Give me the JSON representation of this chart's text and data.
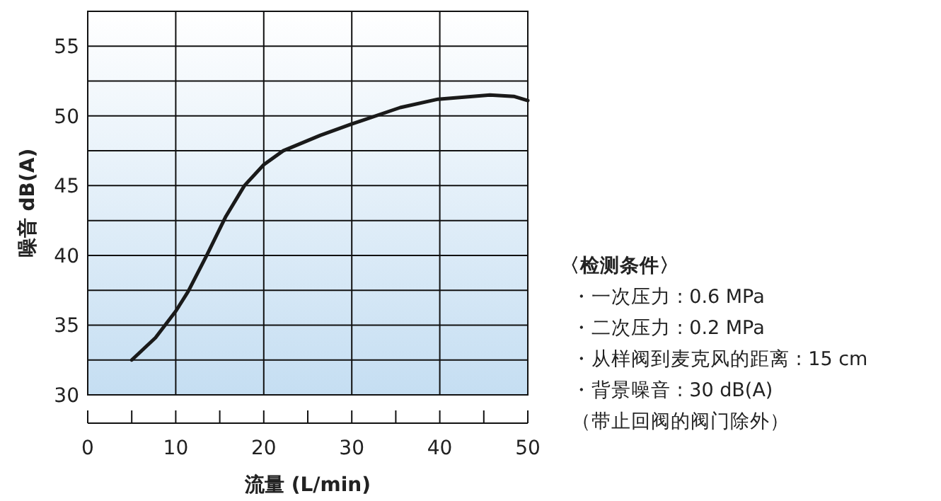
{
  "chart_data": {
    "type": "line",
    "xlabel": "流量 (L/min)",
    "ylabel": "噪音 dB(A)",
    "x": [
      5.0,
      7.7,
      10.0,
      11.4,
      13.6,
      15.7,
      17.8,
      20.0,
      22.2,
      26.4,
      29.9,
      35.5,
      39.8,
      45.7,
      48.4,
      50
    ],
    "series": [
      {
        "color": "#1a1a1a",
        "values": [
          32.5,
          34.1,
          36.0,
          37.4,
          40.1,
          42.8,
          45.0,
          46.5,
          47.5,
          48.6,
          49.4,
          50.6,
          51.2,
          51.5,
          51.4,
          51.1
        ]
      }
    ],
    "xlim": [
      0,
      50
    ],
    "ylim": [
      30,
      57.5
    ],
    "xticks": [
      0,
      {
        "value": 5,
        "label": null
      },
      10,
      {
        "value": 15,
        "label": null
      },
      20,
      {
        "value": 25,
        "label": null
      },
      30,
      {
        "value": 35,
        "label": null
      },
      40,
      {
        "value": 45,
        "label": null
      },
      50
    ],
    "yticks": [
      30,
      {
        "value": 32.5,
        "label": null
      },
      35,
      {
        "value": 37.5,
        "label": null
      },
      40,
      {
        "value": 42.5,
        "label": null
      },
      45,
      {
        "value": 47.5,
        "label": null
      },
      50,
      {
        "value": 52.5,
        "label": null
      },
      55
    ],
    "grid": true,
    "marker": "none",
    "line_style": "solid",
    "annotations": [
      "〈检测条件〉",
      "・一次压力 : 0.6 MPa",
      "・二次压力 : 0.2 MPa",
      "・从样阀到麦克风的距离 : 15 cm",
      "・背景噪音 : 30 dB(A)",
      "（带止回阀的阀门除外）"
    ]
  }
}
